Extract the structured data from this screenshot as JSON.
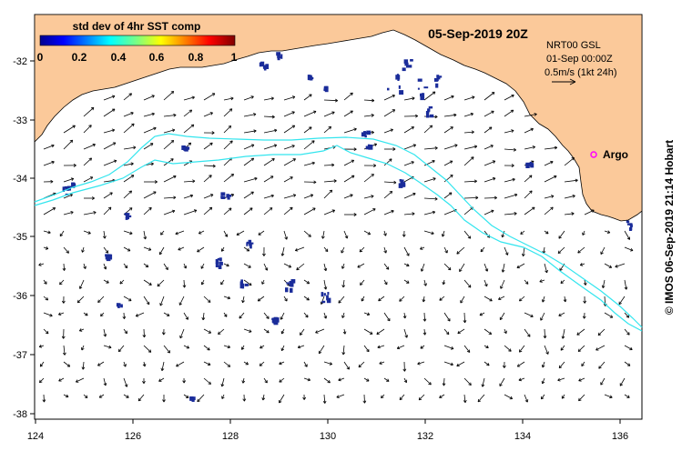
{
  "title": "05-Sep-2019 20Z",
  "colorbar": {
    "label": "std dev of 4hr SST comp",
    "ticks": [
      "0",
      "0.2",
      "0.4",
      "0.6",
      "0.8",
      "1"
    ]
  },
  "info": {
    "line1": "NRT00 GSL",
    "line2": "01-Sep 00:00Z",
    "line3": "0.5m/s (1kt 24h)"
  },
  "argo_label": "Argo",
  "credit": "© IMOS 06-Sep-2019 21:14 Hobart",
  "axes": {
    "x_ticks": [
      "124",
      "126",
      "128",
      "130",
      "132",
      "134",
      "136"
    ],
    "y_ticks": [
      "-32",
      "-33",
      "-34",
      "-35",
      "-36",
      "-37",
      "-38"
    ]
  },
  "colors": {
    "land": "#fbc99a",
    "contour": "#33e5ee",
    "argo": "#ff00ff",
    "sst_patch": "#1a2c9a"
  }
}
